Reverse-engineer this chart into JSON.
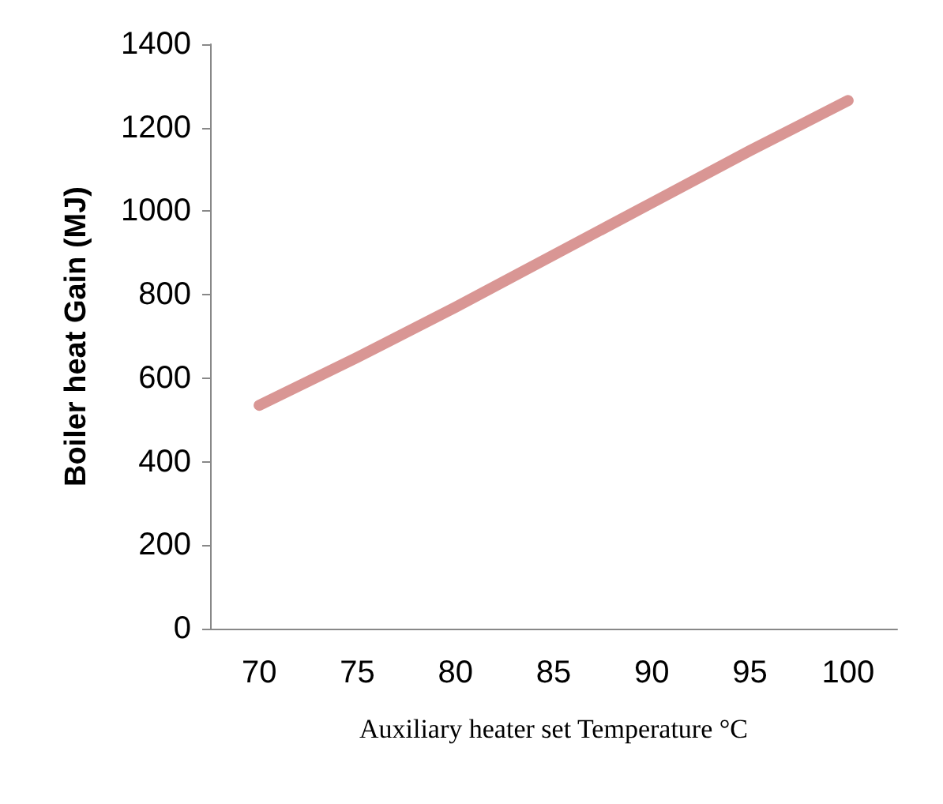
{
  "chart_data": {
    "type": "line",
    "xlabel": "Auxiliary heater set Temperature °C",
    "ylabel": "Boiler heat Gain (MJ)",
    "categories": [
      "70",
      "75",
      "80",
      "85",
      "90",
      "95",
      "100"
    ],
    "series": [
      {
        "color": "#d99694",
        "values": [
          535,
          650,
          770,
          895,
          1020,
          1145,
          1265
        ]
      }
    ],
    "ylim": [
      0,
      1400
    ],
    "yticks": [
      0,
      200,
      400,
      600,
      800,
      1000,
      1200,
      1400
    ],
    "grid": false,
    "line_style": "solid"
  }
}
